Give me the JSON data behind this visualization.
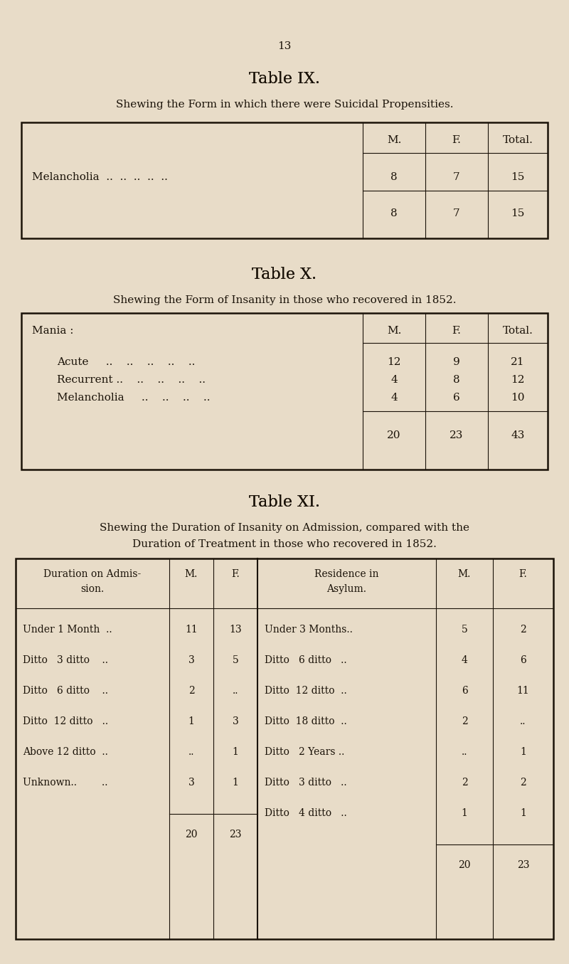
{
  "bg_color": "#e8dcc8",
  "text_color": "#1a1208",
  "page_number": "13",
  "table9": {
    "title": "Table IX.",
    "subtitle": "Shewing the Form in which there were Suicidal Propensities.",
    "row_label": "Melancholia  ..  ..  ..  ..  ..",
    "data_m": "8",
    "data_f": "7",
    "data_t": "15"
  },
  "table10": {
    "title": "Table X.",
    "subtitle": "Shewing the Form of Insanity in those who recovered in 1852.",
    "group_label": "Mania :",
    "rows": [
      {
        "label": "Acute     ..    ..    ..    ..    ..",
        "m": "12",
        "f": "9",
        "t": "21"
      },
      {
        "label": "Recurrent ..    ..    ..    ..    ..",
        "m": "4",
        "f": "8",
        "t": "12"
      },
      {
        "label": "Melancholia     ..    ..    ..    ..",
        "m": "4",
        "f": "6",
        "t": "10"
      }
    ],
    "totals": [
      "20",
      "23",
      "43"
    ]
  },
  "table11": {
    "title": "Table XI.",
    "subtitle_line1": "Shewing the Duration of Insanity on Admission, compared with the",
    "subtitle_line2": "Duration of Treatment in those who recovered in 1852.",
    "left_rows": [
      {
        "label": "Under 1 Month  ..",
        "m": "11",
        "f": "13"
      },
      {
        "label": "Ditto   3 ditto    ..",
        "m": "3",
        "f": "5"
      },
      {
        "label": "Ditto   6 ditto    ..",
        "m": "2",
        "f": ".."
      },
      {
        "label": "Ditto  12 ditto   ..",
        "m": "1",
        "f": "3"
      },
      {
        "label": "Above 12 ditto  ..",
        "m": "..",
        "f": "1"
      },
      {
        "label": "Unknown..        ..",
        "m": "3",
        "f": "1"
      }
    ],
    "left_totals": [
      "20",
      "23"
    ],
    "right_rows": [
      {
        "label": "Under 3 Months..",
        "m": "5",
        "f": "2"
      },
      {
        "label": "Ditto   6 ditto   ..",
        "m": "4",
        "f": "6"
      },
      {
        "label": "Ditto  12 ditto  ..",
        "m": "6",
        "f": "11"
      },
      {
        "label": "Ditto  18 ditto  ..",
        "m": "2",
        "f": ".."
      },
      {
        "label": "Ditto   2 Years ..",
        "m": "..",
        "f": "1"
      },
      {
        "label": "Ditto   3 ditto   ..",
        "m": "2",
        "f": "2"
      },
      {
        "label": "Ditto   4 ditto   ..",
        "m": "1",
        "f": "1"
      }
    ],
    "right_totals": [
      "20",
      "23"
    ]
  }
}
